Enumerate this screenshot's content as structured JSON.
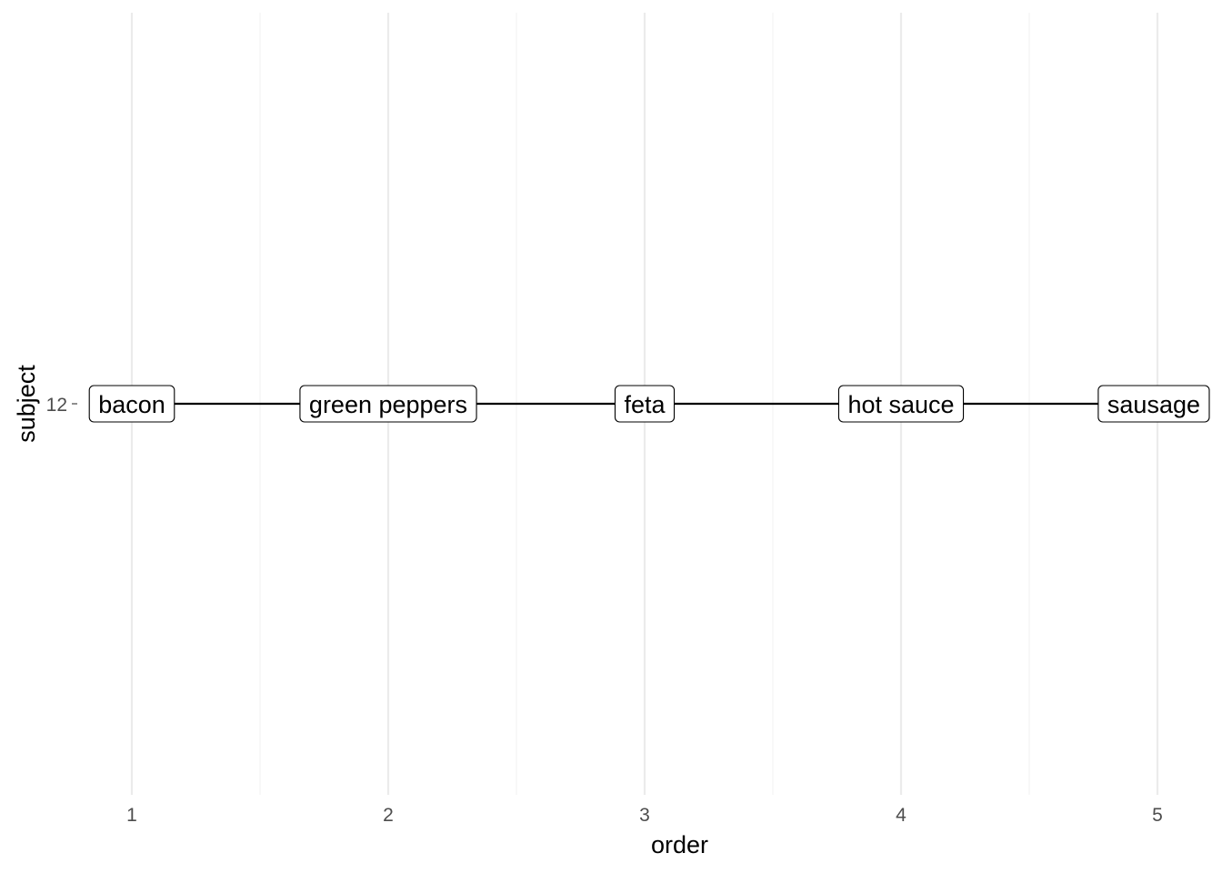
{
  "chart_data": {
    "type": "line",
    "xlabel": "order",
    "ylabel": "subject",
    "x_ticks": [
      "1",
      "2",
      "3",
      "4",
      "5"
    ],
    "y_ticks": [
      "12"
    ],
    "xlim": [
      0.83,
      5.2
    ],
    "grid": true,
    "series": [
      {
        "subject": "12",
        "points": [
          {
            "x": 1,
            "label": "bacon"
          },
          {
            "x": 2,
            "label": "green peppers"
          },
          {
            "x": 3,
            "label": "feta"
          },
          {
            "x": 4,
            "label": "hot sauce"
          },
          {
            "x": 5,
            "label": "sausage"
          }
        ]
      }
    ]
  }
}
